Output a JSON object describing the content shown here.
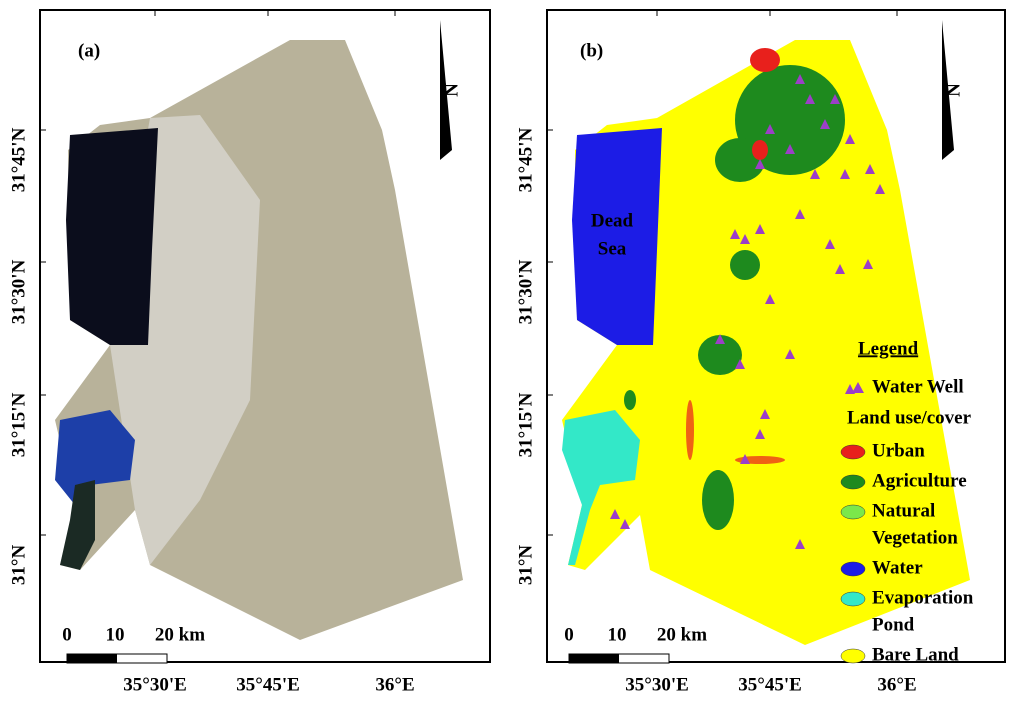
{
  "panels": [
    {
      "label": "(a)",
      "sea_label": [],
      "north": "N",
      "lat_labels": [
        "31°45'N",
        "31°30'N",
        "31°15'N",
        "31°N"
      ],
      "lon_labels": [
        "35°30'E",
        "35°45'E",
        "36°E"
      ],
      "scale_labels": [
        "0",
        "10",
        "20 km"
      ]
    },
    {
      "label": "(b)",
      "sea_label": [
        "Dead",
        "Sea"
      ],
      "north": "N",
      "lat_labels": [
        "31°45'N",
        "31°30'N",
        "31°15'N",
        "31°N"
      ],
      "lon_labels": [
        "35°30'E",
        "35°45'E",
        "36°E"
      ],
      "scale_labels": [
        "0",
        "10",
        "20 km"
      ]
    }
  ],
  "legend": {
    "title": "Legend",
    "well": "Water Well",
    "well_color": "#9b3fc8",
    "group": "Land use/cover",
    "classes": [
      {
        "lines": [
          "Urban"
        ],
        "color": "#e8201c"
      },
      {
        "lines": [
          "Agriculture"
        ],
        "color": "#1e8a1e"
      },
      {
        "lines": [
          "Natural",
          "Vegetation"
        ],
        "color": "#7be84a"
      },
      {
        "lines": [
          "Water"
        ],
        "color": "#1c1ce6"
      },
      {
        "lines": [
          "Evaporation",
          "Pond"
        ],
        "color": "#33e8c8"
      },
      {
        "lines": [
          "Bare Land"
        ],
        "color": "#ffff00"
      }
    ]
  }
}
